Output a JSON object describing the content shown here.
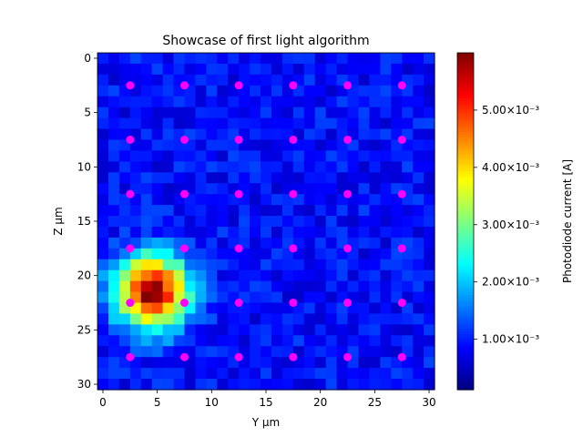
{
  "chart_data": {
    "type": "heatmap",
    "title": "Showcase of first light algorithm",
    "xlabel": "Y μm",
    "ylabel": "Z μm",
    "xlim": [
      -0.5,
      30.5
    ],
    "ylim": [
      30.5,
      -0.5
    ],
    "x_ticks": [
      0,
      5,
      10,
      15,
      20,
      25,
      30
    ],
    "y_ticks": [
      0,
      5,
      10,
      15,
      20,
      25,
      30
    ],
    "grid_size": [
      31,
      31
    ],
    "colormap": "jet",
    "background_level": 0.0009,
    "hotspot": {
      "center_y": 4.5,
      "center_z": 21.5,
      "peak": 0.0059,
      "sigma": 2.3
    },
    "colorbar": {
      "label": "Photodiode current [A]",
      "vmin": 0.00012,
      "vmax": 0.006,
      "ticks": [
        0.001,
        0.002,
        0.003,
        0.004,
        0.005
      ],
      "tick_labels": [
        "1.00×10⁻³",
        "2.00×10⁻³",
        "3.00×10⁻³",
        "4.00×10⁻³",
        "5.00×10⁻³"
      ]
    },
    "markers": {
      "color": "#ff00ff",
      "y": [
        2.5,
        7.5,
        12.5,
        17.5,
        22.5,
        27.5
      ],
      "z": [
        2.5,
        7.5,
        12.5,
        17.5,
        22.5,
        27.5
      ]
    }
  }
}
